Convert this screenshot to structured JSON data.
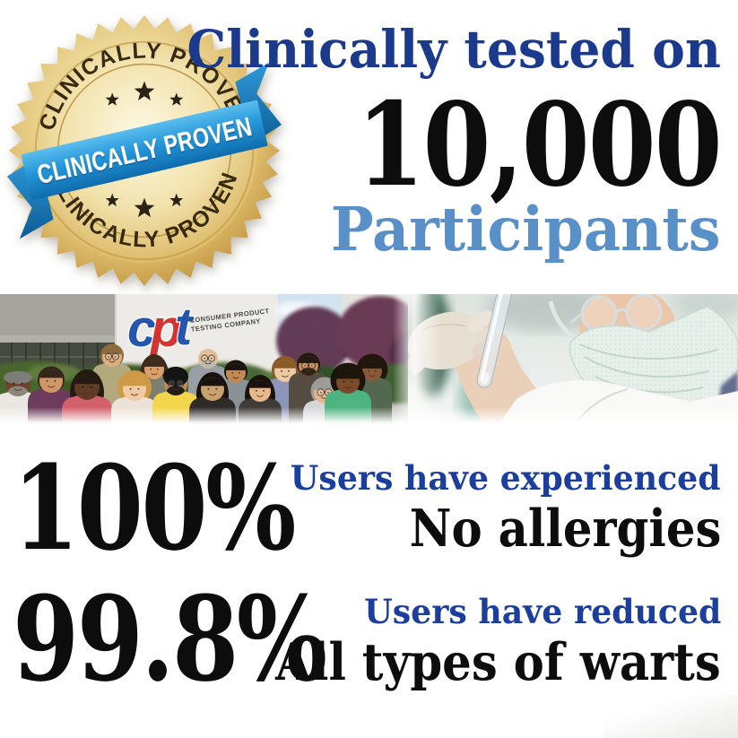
{
  "colors": {
    "navy": "#1b3a8c",
    "label_navy": "#1c3f9e",
    "light_blue": "#5a90c8",
    "black": "#0d0d0d",
    "ribbon_blue": "#2196d6",
    "gold": "#e3c678",
    "logo_blue": "#2356ac",
    "logo_red": "#d43431"
  },
  "badge": {
    "arc_top": "CLINICALLY PROVEN",
    "ribbon_label": "CLINICALLY PROVEN",
    "arc_bottom": "CLINICALLY PROVEN"
  },
  "hero": {
    "line1": "Clinically tested on",
    "line2": "10,000",
    "line3": "Participants"
  },
  "photo": {
    "logo": {
      "c": "c",
      "p": "p",
      "t": "t"
    },
    "logo_sub1": "CONSUMER PRODUCT",
    "logo_sub2": "TESTING COMPANY"
  },
  "stats": [
    {
      "value": "100%",
      "label": "Users have experienced",
      "result": "No allergies"
    },
    {
      "value": "99.8%",
      "label": "Users have reduced",
      "result": "All types of warts"
    }
  ]
}
